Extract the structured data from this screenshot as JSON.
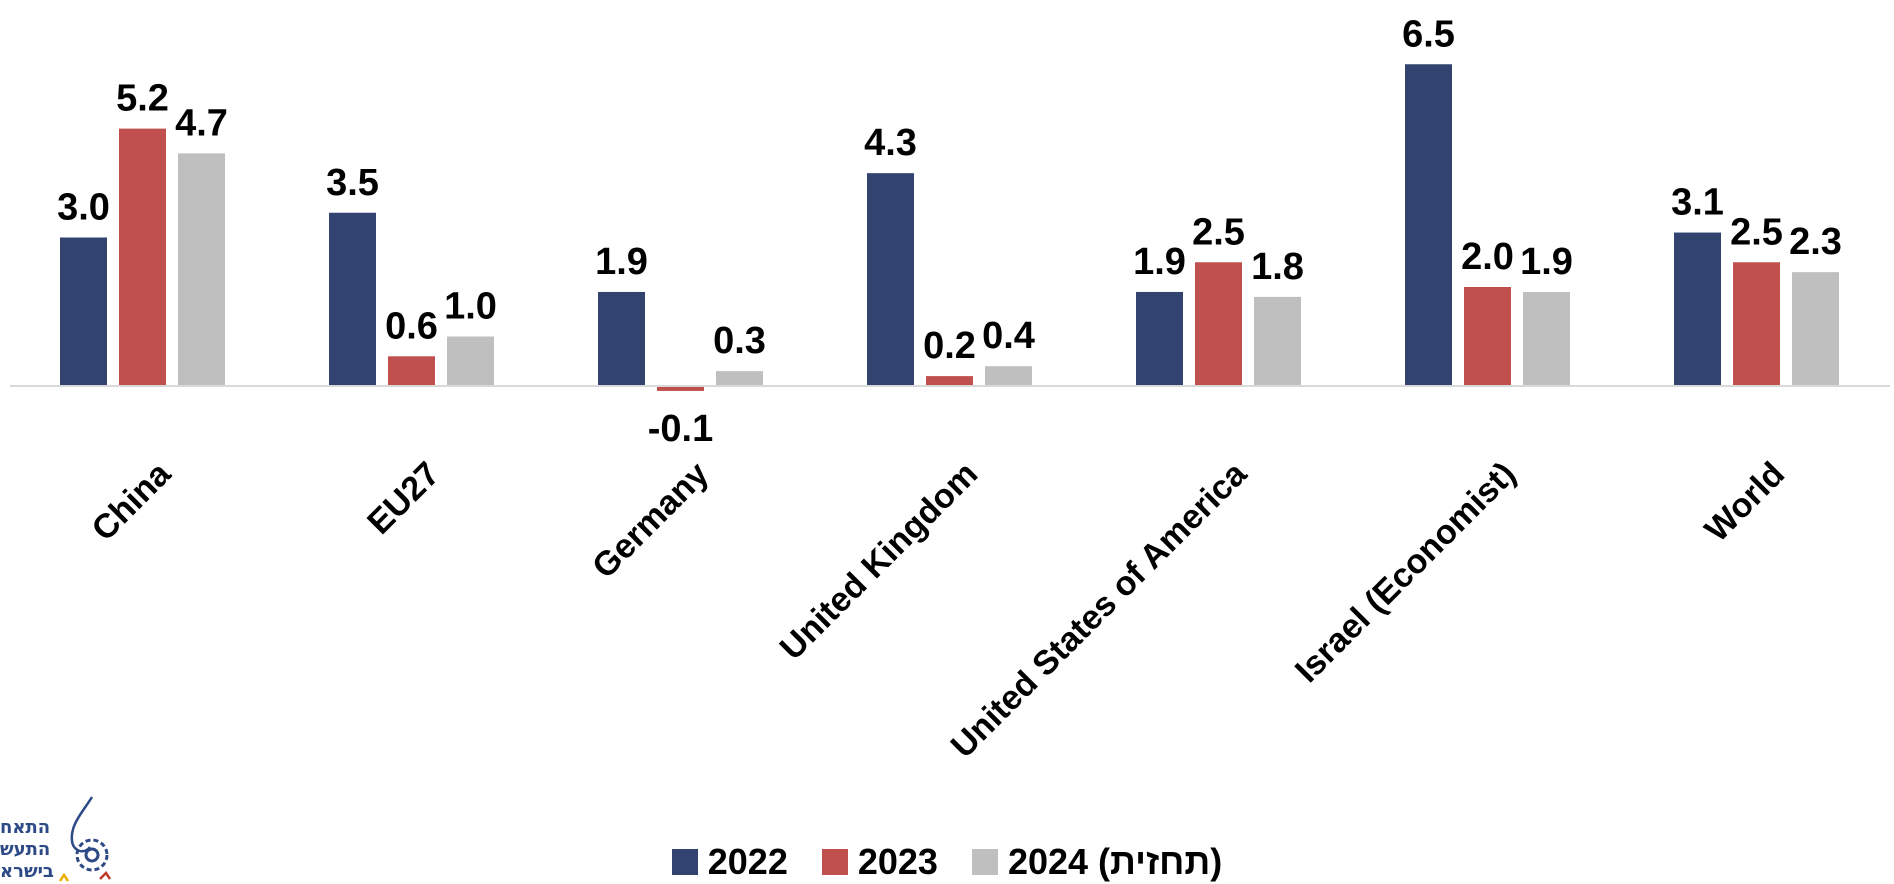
{
  "chart_data": {
    "type": "bar",
    "categories": [
      "China",
      "EU27",
      "Germany",
      "United Kingdom",
      "United States of America",
      "Israel (Economist)",
      "World"
    ],
    "series": [
      {
        "name": "2022",
        "color": "#31436e",
        "values": [
          3.0,
          3.5,
          1.9,
          4.3,
          1.9,
          6.5,
          3.1
        ]
      },
      {
        "name": "2023",
        "color": "#c0504d",
        "values": [
          5.2,
          0.6,
          -0.1,
          0.2,
          2.5,
          2.0,
          2.5
        ]
      },
      {
        "name": "2024 (תחזית)",
        "color": "#bfbfbf",
        "values": [
          4.7,
          1.0,
          0.3,
          0.4,
          1.8,
          1.9,
          2.3
        ]
      }
    ],
    "data_labels": true,
    "grid": false,
    "legend_position": "bottom"
  },
  "logo": {
    "lines": [
      "התאח",
      "התעש",
      "בישרא"
    ]
  }
}
